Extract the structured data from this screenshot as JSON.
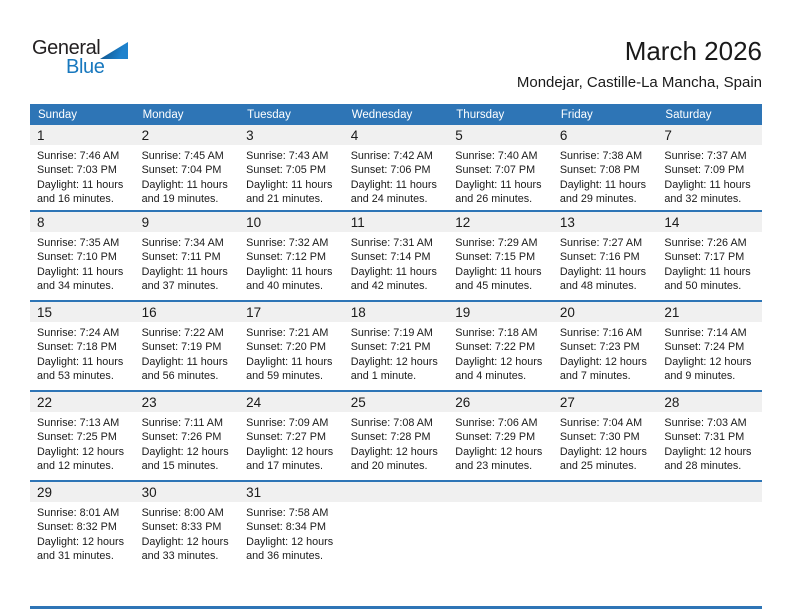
{
  "logo": {
    "line1": "General",
    "line2": "Blue"
  },
  "title": "March 2026",
  "subtitle": "Mondejar, Castille-La Mancha, Spain",
  "labels": {
    "sunrise": "Sunrise:",
    "sunset": "Sunset:",
    "daylight": "Daylight:"
  },
  "weekday_headers": [
    "Sunday",
    "Monday",
    "Tuesday",
    "Wednesday",
    "Thursday",
    "Friday",
    "Saturday"
  ],
  "colors": {
    "header_blue": "#2E75B6",
    "band_gray": "#F0F0F0",
    "logo_blue": "#1878BE",
    "text": "#1A1A1A",
    "header_text": "#FFFFFF"
  },
  "weeks": [
    [
      {
        "day": "1",
        "sunrise": "7:46 AM",
        "sunset": "7:03 PM",
        "daylight": "11 hours and 16 minutes."
      },
      {
        "day": "2",
        "sunrise": "7:45 AM",
        "sunset": "7:04 PM",
        "daylight": "11 hours and 19 minutes."
      },
      {
        "day": "3",
        "sunrise": "7:43 AM",
        "sunset": "7:05 PM",
        "daylight": "11 hours and 21 minutes."
      },
      {
        "day": "4",
        "sunrise": "7:42 AM",
        "sunset": "7:06 PM",
        "daylight": "11 hours and 24 minutes."
      },
      {
        "day": "5",
        "sunrise": "7:40 AM",
        "sunset": "7:07 PM",
        "daylight": "11 hours and 26 minutes."
      },
      {
        "day": "6",
        "sunrise": "7:38 AM",
        "sunset": "7:08 PM",
        "daylight": "11 hours and 29 minutes."
      },
      {
        "day": "7",
        "sunrise": "7:37 AM",
        "sunset": "7:09 PM",
        "daylight": "11 hours and 32 minutes."
      }
    ],
    [
      {
        "day": "8",
        "sunrise": "7:35 AM",
        "sunset": "7:10 PM",
        "daylight": "11 hours and 34 minutes."
      },
      {
        "day": "9",
        "sunrise": "7:34 AM",
        "sunset": "7:11 PM",
        "daylight": "11 hours and 37 minutes."
      },
      {
        "day": "10",
        "sunrise": "7:32 AM",
        "sunset": "7:12 PM",
        "daylight": "11 hours and 40 minutes."
      },
      {
        "day": "11",
        "sunrise": "7:31 AM",
        "sunset": "7:14 PM",
        "daylight": "11 hours and 42 minutes."
      },
      {
        "day": "12",
        "sunrise": "7:29 AM",
        "sunset": "7:15 PM",
        "daylight": "11 hours and 45 minutes."
      },
      {
        "day": "13",
        "sunrise": "7:27 AM",
        "sunset": "7:16 PM",
        "daylight": "11 hours and 48 minutes."
      },
      {
        "day": "14",
        "sunrise": "7:26 AM",
        "sunset": "7:17 PM",
        "daylight": "11 hours and 50 minutes."
      }
    ],
    [
      {
        "day": "15",
        "sunrise": "7:24 AM",
        "sunset": "7:18 PM",
        "daylight": "11 hours and 53 minutes."
      },
      {
        "day": "16",
        "sunrise": "7:22 AM",
        "sunset": "7:19 PM",
        "daylight": "11 hours and 56 minutes."
      },
      {
        "day": "17",
        "sunrise": "7:21 AM",
        "sunset": "7:20 PM",
        "daylight": "11 hours and 59 minutes."
      },
      {
        "day": "18",
        "sunrise": "7:19 AM",
        "sunset": "7:21 PM",
        "daylight": "12 hours and 1 minute."
      },
      {
        "day": "19",
        "sunrise": "7:18 AM",
        "sunset": "7:22 PM",
        "daylight": "12 hours and 4 minutes."
      },
      {
        "day": "20",
        "sunrise": "7:16 AM",
        "sunset": "7:23 PM",
        "daylight": "12 hours and 7 minutes."
      },
      {
        "day": "21",
        "sunrise": "7:14 AM",
        "sunset": "7:24 PM",
        "daylight": "12 hours and 9 minutes."
      }
    ],
    [
      {
        "day": "22",
        "sunrise": "7:13 AM",
        "sunset": "7:25 PM",
        "daylight": "12 hours and 12 minutes."
      },
      {
        "day": "23",
        "sunrise": "7:11 AM",
        "sunset": "7:26 PM",
        "daylight": "12 hours and 15 minutes."
      },
      {
        "day": "24",
        "sunrise": "7:09 AM",
        "sunset": "7:27 PM",
        "daylight": "12 hours and 17 minutes."
      },
      {
        "day": "25",
        "sunrise": "7:08 AM",
        "sunset": "7:28 PM",
        "daylight": "12 hours and 20 minutes."
      },
      {
        "day": "26",
        "sunrise": "7:06 AM",
        "sunset": "7:29 PM",
        "daylight": "12 hours and 23 minutes."
      },
      {
        "day": "27",
        "sunrise": "7:04 AM",
        "sunset": "7:30 PM",
        "daylight": "12 hours and 25 minutes."
      },
      {
        "day": "28",
        "sunrise": "7:03 AM",
        "sunset": "7:31 PM",
        "daylight": "12 hours and 28 minutes."
      }
    ],
    [
      {
        "day": "29",
        "sunrise": "8:01 AM",
        "sunset": "8:32 PM",
        "daylight": "12 hours and 31 minutes."
      },
      {
        "day": "30",
        "sunrise": "8:00 AM",
        "sunset": "8:33 PM",
        "daylight": "12 hours and 33 minutes."
      },
      {
        "day": "31",
        "sunrise": "7:58 AM",
        "sunset": "8:34 PM",
        "daylight": "12 hours and 36 minutes."
      },
      null,
      null,
      null,
      null
    ]
  ]
}
